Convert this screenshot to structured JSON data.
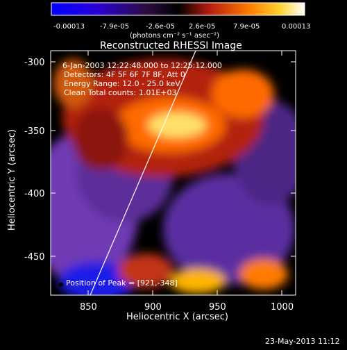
{
  "chart_data": {
    "type": "heatmap",
    "title": "Reconstructed RHESSI Image",
    "xlabel": "Heliocentric X (arcsec)",
    "ylabel": "Heliocentric Y (arcsec)",
    "xlim": [
      821,
      1010
    ],
    "ylim": [
      -486,
      -291
    ],
    "x_ticks": [
      "850",
      "900",
      "950",
      "1000"
    ],
    "y_ticks": [
      "-300",
      "-350",
      "-400",
      "-450"
    ],
    "colorbar": {
      "ticks": [
        "-0.00013",
        "-7.9e-05",
        "-2.6e-05",
        "2.6e-05",
        "7.9e-05",
        "0.00013"
      ],
      "unit_label": "(photons cm⁻² s⁻¹ asec⁻²)",
      "range": [
        -0.00013,
        0.00013
      ]
    },
    "annotations": {
      "time_range": "6-Jan-2003 12:22:48.000 to 12:25:12.000",
      "detectors": "Detectors: 4F 5F 6F 7F 8F, Att 0",
      "energy": "Energy Range: 12.0 - 25.0 keV",
      "clean": "Clean     Total counts: 1.01E+03",
      "peak": "Position of Peak = [921,-348]"
    },
    "limb_line": [
      [
        850,
        -486
      ],
      [
        935,
        -291
      ]
    ],
    "peak_position": [
      921,
      -348
    ],
    "colors": {
      "negative_low": "#1d1ee8",
      "negative_mid": "#6e3bb3",
      "zero": "#000000",
      "positive_mid": "#b82418",
      "positive_high": "#ff8a00",
      "positive_max": "#ffff9a"
    }
  },
  "footer": {
    "date": "23-May-2013 11:12"
  }
}
